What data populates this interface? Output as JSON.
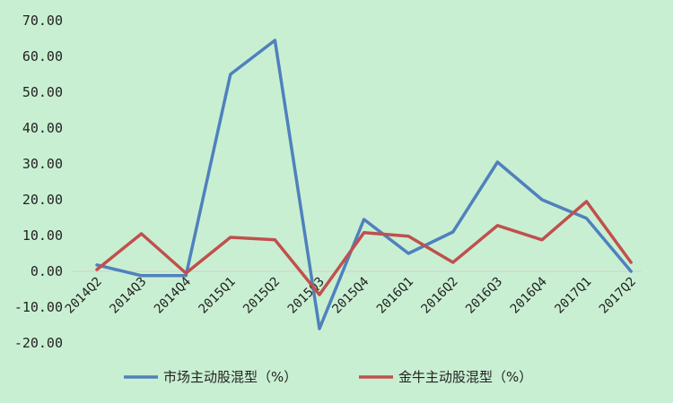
{
  "chart_data": {
    "type": "line",
    "title": "",
    "xlabel": "",
    "ylabel": "",
    "ylim": [
      -20,
      70
    ],
    "yticks": [
      "70.00",
      "60.00",
      "50.00",
      "40.00",
      "30.00",
      "20.00",
      "10.00",
      "0.00",
      "-10.00",
      "-20.00"
    ],
    "categories": [
      "2014Q2",
      "2014Q3",
      "2014Q4",
      "2015Q1",
      "2015Q2",
      "2015Q3",
      "2015Q4",
      "2016Q1",
      "2016Q2",
      "2016Q3",
      "2016Q4",
      "2017Q1",
      "2017Q2"
    ],
    "grid": false,
    "legend_position": "bottom",
    "series": [
      {
        "name": "市场主动股混型（%）",
        "color": "#4f81bd",
        "values": [
          1.8,
          -1.2,
          -1.2,
          55.0,
          64.5,
          -16.0,
          14.5,
          5.0,
          11.0,
          30.5,
          20.0,
          14.8,
          0.0
        ]
      },
      {
        "name": "金牛主动股混型（%）",
        "color": "#c0504d",
        "values": [
          0.5,
          10.5,
          -0.5,
          9.5,
          8.8,
          -6.5,
          10.8,
          9.8,
          2.5,
          12.8,
          8.8,
          19.5,
          2.5
        ]
      }
    ]
  }
}
